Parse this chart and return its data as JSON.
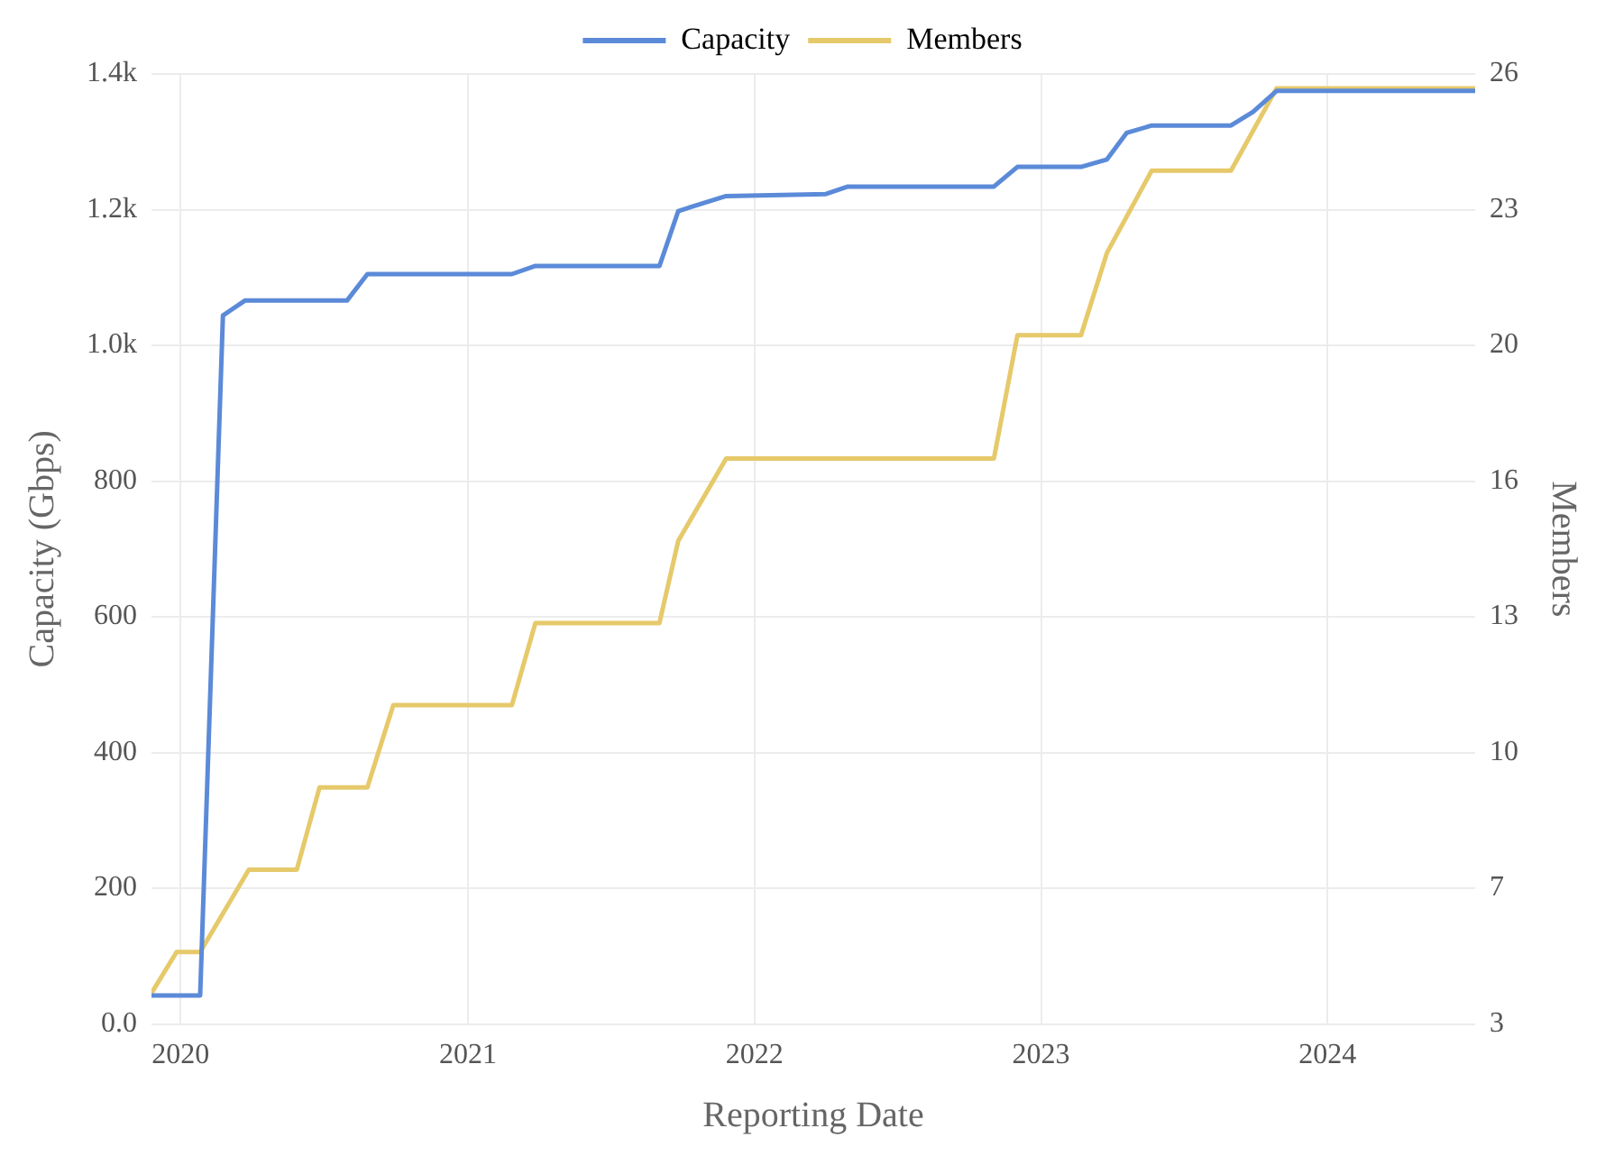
{
  "chart_data": {
    "type": "line",
    "xlabel": "Reporting Date",
    "ylabel": "Capacity (Gbps)",
    "y2label": "Members",
    "legend": "top",
    "grid": true,
    "xlim": [
      "2019-11-25",
      "2024-07-07"
    ],
    "xticks": [
      {
        "value": "2020",
        "label": "2020"
      },
      {
        "value": "2021",
        "label": "2021"
      },
      {
        "value": "2022",
        "label": "2022"
      },
      {
        "value": "2023",
        "label": "2023"
      },
      {
        "value": "2024",
        "label": "2024"
      }
    ],
    "ylim": [
      0,
      1400
    ],
    "yticks": [
      {
        "value": 0,
        "label": "0.0"
      },
      200,
      400,
      600,
      800,
      {
        "value": 1000,
        "label": "1.0k"
      },
      {
        "value": 1200,
        "label": "1.2k"
      },
      {
        "value": 1400,
        "label": "1.4k"
      }
    ],
    "y2lim": [
      3.25,
      26.35
    ],
    "y2ticks": [
      {
        "value": 3.25,
        "label": "3"
      },
      {
        "value": 6.55,
        "label": "7"
      },
      {
        "value": 9.85,
        "label": "10"
      },
      {
        "value": 13.15,
        "label": "13"
      },
      {
        "value": 16.45,
        "label": "16"
      },
      {
        "value": 19.75,
        "label": "20"
      },
      {
        "value": 23.05,
        "label": "23"
      },
      {
        "value": 26.35,
        "label": "26"
      }
    ],
    "series": [
      {
        "name": "Capacity",
        "color": "#5b8ad8",
        "x": [
          "2019-11-25",
          "2020-01-26",
          "2020-02-24",
          "2020-03-23",
          "2020-07-31",
          "2020-08-26",
          "2021-02-26",
          "2021-03-28",
          "2021-09-02",
          "2021-09-26",
          "2021-11-26",
          "2022-04-02",
          "2022-04-30",
          "2022-11-02",
          "2022-12-02",
          "2023-02-21",
          "2023-03-26",
          "2023-04-20",
          "2023-05-22",
          "2023-08-31",
          "2023-09-28",
          "2023-10-28",
          "2024-07-07"
        ],
        "values": [
          42,
          42,
          1044,
          1066,
          1066,
          1105,
          1105,
          1117,
          1117,
          1198,
          1220,
          1223,
          1234,
          1234,
          1263,
          1263,
          1274,
          1313,
          1324,
          1324,
          1344,
          1375,
          1375
        ]
      },
      {
        "name": "Members",
        "color": "#e6c96a",
        "axis": "y2",
        "x": [
          "2019-11-25",
          "2019-12-27",
          "2020-01-26",
          "2020-03-28",
          "2020-05-28",
          "2020-06-26",
          "2020-08-26",
          "2020-09-28",
          "2021-02-26",
          "2021-03-28",
          "2021-09-02",
          "2021-09-26",
          "2021-11-26",
          "2022-11-02",
          "2022-12-02",
          "2023-02-21",
          "2023-03-26",
          "2023-05-22",
          "2023-08-31",
          "2023-10-28",
          "2024-07-07"
        ],
        "values": [
          4,
          5,
          5,
          7,
          7,
          9,
          9,
          11,
          11,
          13,
          13,
          15,
          17,
          17,
          20,
          20,
          22,
          24,
          24,
          26,
          26
        ]
      }
    ]
  }
}
